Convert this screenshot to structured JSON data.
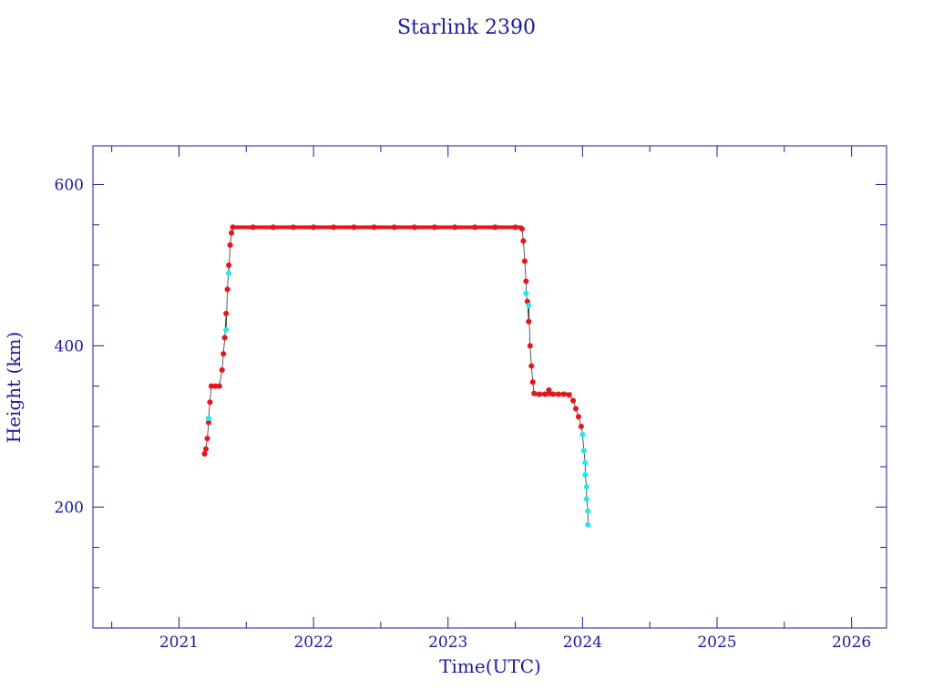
{
  "chart_data": {
    "type": "scatter",
    "title": "Starlink 2390",
    "xlabel": "Time(UTC)",
    "ylabel": "Height (km)",
    "xlim": [
      2020.36,
      2026.26
    ],
    "ylim": [
      50,
      648
    ],
    "x_ticks": [
      2021,
      2022,
      2023,
      2024,
      2025,
      2026
    ],
    "y_ticks": [
      200,
      400,
      600
    ],
    "grid": false,
    "colors": {
      "frame": "#1a1a9e",
      "text": "#1a1a9e",
      "primary_points": "#e8141c",
      "secondary_points": "#27e5f0",
      "connector_line": "#333333"
    },
    "series": [
      {
        "color": "#e8141c",
        "points": [
          [
            2021.19,
            266
          ],
          [
            2021.2,
            272
          ],
          [
            2021.21,
            285
          ],
          [
            2021.22,
            305
          ],
          [
            2021.23,
            330
          ],
          [
            2021.24,
            350
          ],
          [
            2021.27,
            350
          ],
          [
            2021.3,
            350
          ],
          [
            2021.32,
            370
          ],
          [
            2021.33,
            390
          ],
          [
            2021.34,
            410
          ],
          [
            2021.35,
            440
          ],
          [
            2021.36,
            470
          ],
          [
            2021.37,
            500
          ],
          [
            2021.38,
            525
          ],
          [
            2021.39,
            540
          ],
          [
            2021.4,
            547
          ],
          [
            2021.55,
            547
          ],
          [
            2021.7,
            547
          ],
          [
            2021.85,
            547
          ],
          [
            2022.0,
            547
          ],
          [
            2022.15,
            547
          ],
          [
            2022.3,
            547
          ],
          [
            2022.45,
            547
          ],
          [
            2022.6,
            547
          ],
          [
            2022.75,
            547
          ],
          [
            2022.9,
            547
          ],
          [
            2023.05,
            547
          ],
          [
            2023.2,
            547
          ],
          [
            2023.35,
            547
          ],
          [
            2023.5,
            547
          ],
          [
            2023.55,
            545
          ],
          [
            2023.56,
            530
          ],
          [
            2023.57,
            505
          ],
          [
            2023.58,
            480
          ],
          [
            2023.59,
            455
          ],
          [
            2023.6,
            430
          ],
          [
            2023.61,
            400
          ],
          [
            2023.62,
            375
          ],
          [
            2023.63,
            355
          ],
          [
            2023.64,
            341
          ],
          [
            2023.68,
            340
          ],
          [
            2023.72,
            340
          ],
          [
            2023.75,
            345
          ],
          [
            2023.78,
            340
          ],
          [
            2023.82,
            340
          ],
          [
            2023.86,
            340
          ],
          [
            2023.9,
            339
          ],
          [
            2023.93,
            332
          ],
          [
            2023.95,
            322
          ],
          [
            2023.97,
            312
          ],
          [
            2023.99,
            300
          ]
        ]
      },
      {
        "color": "#27e5f0",
        "points": [
          [
            2021.22,
            310
          ],
          [
            2021.35,
            420
          ],
          [
            2021.37,
            490
          ],
          [
            2023.58,
            465
          ],
          [
            2023.6,
            450
          ],
          [
            2024.0,
            290
          ],
          [
            2024.01,
            270
          ],
          [
            2024.02,
            255
          ],
          [
            2024.02,
            240
          ],
          [
            2024.03,
            225
          ],
          [
            2024.03,
            210
          ],
          [
            2024.04,
            195
          ],
          [
            2024.04,
            178
          ]
        ]
      }
    ]
  }
}
